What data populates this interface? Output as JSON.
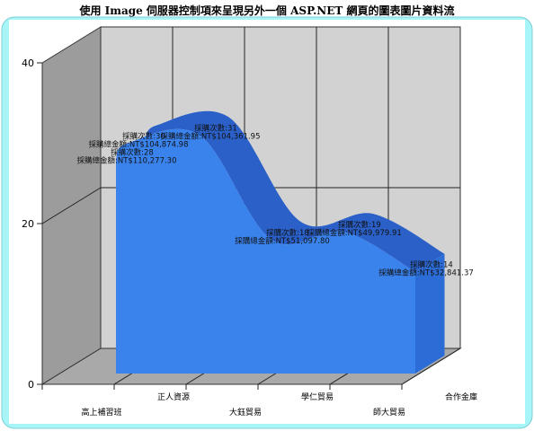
{
  "chart_data": {
    "type": "area",
    "title": "使用 Image 伺服器控制項來呈現另外一個 ASP.NET 網頁的圖表圖片資料流",
    "categories": [
      "高上補習班",
      "正人資源",
      "大鈺貿易",
      "學仁貿易",
      "師大貿易",
      "合作金庫"
    ],
    "series": [
      {
        "values": [
          28,
          30,
          31,
          18,
          19,
          14
        ],
        "labels": [
          [
            "採購次數:28",
            "採購總金額:NT$110,277.30"
          ],
          [
            "採購次數:30",
            "採購總金額:NT$104,874.98"
          ],
          [
            "採購次數:31",
            "採購總金額:NT$104,361.95"
          ],
          [
            "採購次數:18",
            "採購總金額:NT$51,097.80"
          ],
          [
            "採購次數:19",
            "採購總金額:NT$49,979.91"
          ],
          [
            "採購次數:14",
            "採購總金額:NT$32,841.37"
          ]
        ]
      }
    ],
    "yticks": [
      0,
      20,
      40
    ],
    "ylim": [
      0,
      40
    ],
    "grid": true,
    "three_d": true,
    "colors": {
      "area_front": "#3a82ec",
      "area_top": "#2a60c8",
      "wall": "#d2d2d2",
      "side_wall": "#9c9c9c",
      "floor": "#a9a9a9",
      "frame": "#a8f5f8"
    }
  }
}
